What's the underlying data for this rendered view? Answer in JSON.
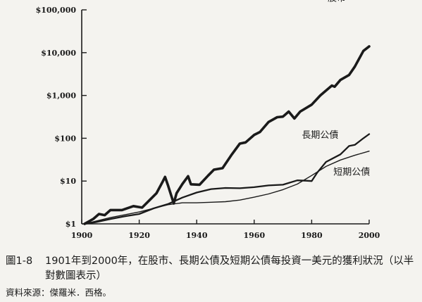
{
  "chart_data": {
    "type": "line",
    "y_scale": "log",
    "ylim": [
      1,
      100000
    ],
    "xlim": [
      1900,
      2000
    ],
    "x_ticks": [
      "1900",
      "1920",
      "1940",
      "1960",
      "1980",
      "2000"
    ],
    "y_ticks": [
      "$1",
      "$10",
      "$100",
      "$1,000",
      "$10,000",
      "$100,000"
    ],
    "series": [
      {
        "name": "股市",
        "x": [
          1901,
          1904,
          1906,
          1908,
          1910,
          1914,
          1918,
          1921,
          1924,
          1926,
          1928,
          1929,
          1930,
          1932,
          1933,
          1935,
          1937,
          1938,
          1941,
          1944,
          1946,
          1949,
          1952,
          1955,
          1957,
          1960,
          1962,
          1965,
          1968,
          1970,
          1972,
          1974,
          1976,
          1980,
          1983,
          1987,
          1988,
          1990,
          1993,
          1995,
          1998,
          2000
        ],
        "y": [
          1.0,
          1.3,
          1.7,
          1.6,
          2.1,
          2.1,
          2.6,
          2.4,
          3.8,
          5.2,
          9.2,
          12.5,
          8.0,
          3.0,
          5.2,
          8.5,
          13.0,
          8.4,
          8.2,
          13.5,
          18.5,
          20.0,
          40.0,
          75.0,
          80.0,
          120.0,
          140.0,
          240.0,
          310.0,
          320.0,
          420.0,
          290.0,
          420.0,
          610.0,
          1000.0,
          1700.0,
          1600.0,
          2300.0,
          3000.0,
          4700.0,
          11000.0,
          14000.0
        ],
        "color": "#1a1a1a"
      },
      {
        "name": "長期公債",
        "x": [
          1901,
          1905,
          1910,
          1915,
          1920,
          1925,
          1930,
          1935,
          1940,
          1945,
          1950,
          1955,
          1960,
          1965,
          1970,
          1975,
          1978,
          1980,
          1982,
          1985,
          1990,
          1993,
          1995,
          1998,
          2000
        ],
        "y": [
          1.0,
          1.1,
          1.3,
          1.5,
          1.7,
          2.3,
          2.9,
          4.1,
          5.4,
          6.5,
          6.9,
          6.8,
          7.2,
          7.9,
          8.2,
          10.4,
          10.2,
          10.0,
          16.0,
          28.0,
          42.0,
          66.0,
          70.0,
          100.0,
          125.0
        ],
        "color": "#1a1a1a"
      },
      {
        "name": "短期公債",
        "x": [
          1901,
          1910,
          1920,
          1930,
          1935,
          1940,
          1945,
          1950,
          1955,
          1960,
          1965,
          1970,
          1975,
          1980,
          1985,
          1990,
          1995,
          2000
        ],
        "y": [
          1.0,
          1.4,
          1.9,
          2.8,
          3.1,
          3.1,
          3.2,
          3.3,
          3.6,
          4.2,
          5.0,
          6.3,
          8.5,
          13.5,
          22.0,
          31.0,
          40.0,
          50.0
        ],
        "color": "#1a1a1a"
      }
    ]
  },
  "caption": {
    "figure_number": "圖1-8",
    "text": "1901年到2000年，在股市、長期公債及短期公債每投資一美元的獲利狀況（以半對數圖表示）"
  },
  "source": "資料來源：傑羅米．西格。"
}
